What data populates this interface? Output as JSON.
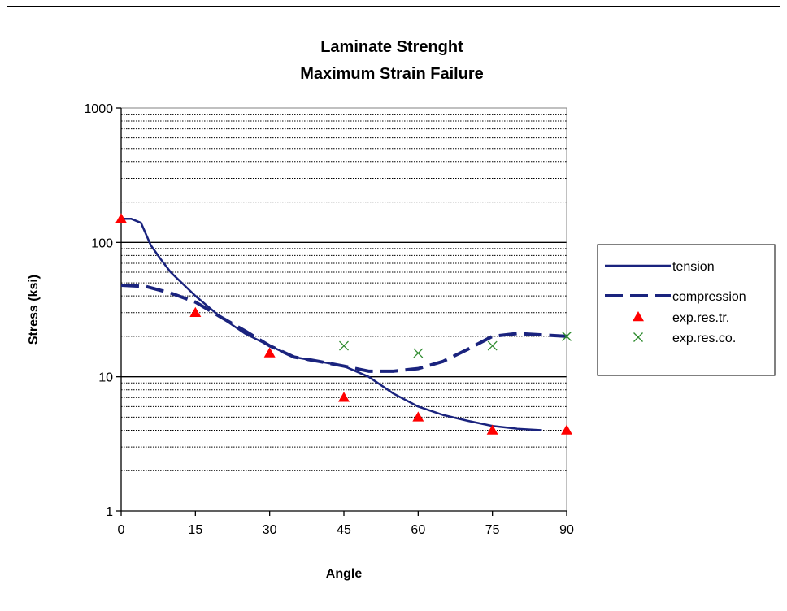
{
  "chart_data": {
    "type": "line",
    "title_line1": "Laminate Strenght",
    "title_line2": "Maximum Strain Failure",
    "xlabel": "Angle",
    "ylabel": "Stress (ksi)",
    "x_scale": "linear",
    "y_scale": "log",
    "xlim": [
      0,
      90
    ],
    "ylim": [
      1,
      1000
    ],
    "x_ticks": [
      "0",
      "15",
      "30",
      "45",
      "60",
      "75",
      "90"
    ],
    "y_ticks": [
      "1",
      "10",
      "100",
      "1000"
    ],
    "grid": "horizontal, solid at decades, dotted at minor ticks",
    "legend_position": "right",
    "series": [
      {
        "name": "tension",
        "style": "solid-line",
        "color": "#1a237e",
        "x": [
          0,
          2,
          4,
          6,
          8,
          10,
          15,
          20,
          25,
          30,
          35,
          40,
          45,
          50,
          55,
          60,
          65,
          70,
          75,
          80,
          85
        ],
        "y": [
          150,
          150,
          140,
          95,
          75,
          60,
          40,
          28,
          21,
          17,
          14,
          13,
          12,
          10,
          7.5,
          6,
          5.2,
          4.7,
          4.3,
          4.1,
          4
        ]
      },
      {
        "name": "compression",
        "style": "dashed-line",
        "color": "#1a237e",
        "x": [
          0,
          5,
          10,
          15,
          20,
          25,
          30,
          35,
          40,
          45,
          50,
          55,
          60,
          65,
          70,
          75,
          80,
          85,
          90
        ],
        "y": [
          48,
          47,
          42,
          36,
          28,
          22,
          17,
          14,
          13,
          12,
          11,
          11,
          11.5,
          13,
          16,
          20,
          21,
          20.5,
          20
        ]
      },
      {
        "name": "exp.res.tr.",
        "style": "triangle-markers",
        "color": "#ff0000",
        "x": [
          0,
          15,
          30,
          45,
          60,
          75,
          90
        ],
        "y": [
          150,
          30,
          15,
          7,
          5,
          4,
          4
        ]
      },
      {
        "name": "exp.res.co.",
        "style": "x-markers",
        "color": "#2e8b2e",
        "x": [
          45,
          60,
          75,
          90
        ],
        "y": [
          17,
          15,
          17,
          20
        ]
      }
    ]
  }
}
